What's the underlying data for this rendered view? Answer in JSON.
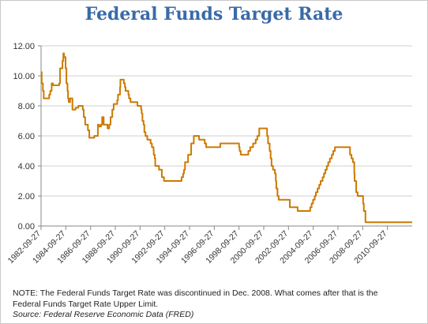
{
  "chart_data": {
    "type": "line",
    "title": "Federal Funds Target Rate",
    "xlabel": "",
    "ylabel": "",
    "ylim": [
      0,
      12
    ],
    "yticks": [
      "0.00",
      "2.00",
      "4.00",
      "6.00",
      "8.00",
      "10.00",
      "12.00"
    ],
    "xticks": [
      "1982-09-27",
      "1984-09-27",
      "1986-09-27",
      "1988-09-27",
      "1990-09-27",
      "1992-09-27",
      "1994-09-27",
      "1996-09-27",
      "1998-09-27",
      "2000-09-27",
      "2002-09-27",
      "2004-09-27",
      "2006-09-27",
      "2008-09-27",
      "2010-09-27"
    ],
    "xlim": [
      "1982-09-27",
      "2012-09-27"
    ],
    "grid": true,
    "legend": "none",
    "line_color": "#cc7a00",
    "series": [
      {
        "points": [
          [
            "1982-09-27",
            10.25
          ],
          [
            "1982-10-15",
            9.5
          ],
          [
            "1982-11-20",
            9.0
          ],
          [
            "1982-12-15",
            8.5
          ],
          [
            "1983-04-01",
            8.5
          ],
          [
            "1983-05-25",
            8.75
          ],
          [
            "1983-06-25",
            9.0
          ],
          [
            "1983-08-05",
            9.5
          ],
          [
            "1983-09-15",
            9.375
          ],
          [
            "1984-03-15",
            9.5
          ],
          [
            "1984-04-10",
            10.5
          ],
          [
            "1984-06-20",
            11.0
          ],
          [
            "1984-07-15",
            11.5
          ],
          [
            "1984-08-05",
            11.25
          ],
          [
            "1984-09-20",
            10.5
          ],
          [
            "1984-10-15",
            9.5
          ],
          [
            "1984-11-15",
            9.0
          ],
          [
            "1984-12-01",
            8.5
          ],
          [
            "1984-12-20",
            8.25
          ],
          [
            "1985-02-01",
            8.5
          ],
          [
            "1985-03-10",
            8.5
          ],
          [
            "1985-04-10",
            7.75
          ],
          [
            "1985-05-20",
            7.75
          ],
          [
            "1985-07-10",
            7.875
          ],
          [
            "1985-10-01",
            8.0
          ],
          [
            "1986-02-10",
            7.75
          ],
          [
            "1986-03-10",
            7.25
          ],
          [
            "1986-04-21",
            6.75
          ],
          [
            "1986-07-11",
            6.375
          ],
          [
            "1986-08-21",
            5.875
          ],
          [
            "1986-12-15",
            5.875
          ],
          [
            "1987-01-15",
            6.0
          ],
          [
            "1987-05-01",
            6.75
          ],
          [
            "1987-06-10",
            6.625
          ],
          [
            "1987-08-01",
            6.75
          ],
          [
            "1987-09-04",
            7.25
          ],
          [
            "1987-10-20",
            6.75
          ],
          [
            "1987-11-04",
            6.75
          ],
          [
            "1988-02-11",
            6.5
          ],
          [
            "1988-04-01",
            6.75
          ],
          [
            "1988-05-09",
            7.25
          ],
          [
            "1988-06-30",
            7.75
          ],
          [
            "1988-08-09",
            8.125
          ],
          [
            "1988-11-22",
            8.375
          ],
          [
            "1988-12-15",
            8.75
          ],
          [
            "1989-02-14",
            9.25
          ],
          [
            "1989-02-24",
            9.75
          ],
          [
            "1989-06-06",
            9.5
          ],
          [
            "1989-07-07",
            9.25
          ],
          [
            "1989-07-27",
            9.0
          ],
          [
            "1989-10-18",
            8.75
          ],
          [
            "1989-11-06",
            8.5
          ],
          [
            "1989-12-20",
            8.25
          ],
          [
            "1990-07-13",
            8.0
          ],
          [
            "1990-10-29",
            7.75
          ],
          [
            "1990-11-14",
            7.5
          ],
          [
            "1990-12-07",
            7.0
          ],
          [
            "1991-01-09",
            6.75
          ],
          [
            "1991-02-01",
            6.25
          ],
          [
            "1991-03-08",
            6.0
          ],
          [
            "1991-04-30",
            5.75
          ],
          [
            "1991-08-06",
            5.5
          ],
          [
            "1991-09-13",
            5.25
          ],
          [
            "1991-10-31",
            5.0
          ],
          [
            "1991-11-06",
            4.75
          ],
          [
            "1991-12-06",
            4.5
          ],
          [
            "1991-12-20",
            4.0
          ],
          [
            "1992-04-09",
            3.75
          ],
          [
            "1992-07-02",
            3.25
          ],
          [
            "1992-09-04",
            3.0
          ],
          [
            "1994-02-04",
            3.25
          ],
          [
            "1994-03-22",
            3.5
          ],
          [
            "1994-04-18",
            3.75
          ],
          [
            "1994-05-17",
            4.25
          ],
          [
            "1994-08-16",
            4.75
          ],
          [
            "1994-11-15",
            5.5
          ],
          [
            "1995-02-01",
            6.0
          ],
          [
            "1995-07-06",
            5.75
          ],
          [
            "1995-12-19",
            5.5
          ],
          [
            "1996-01-31",
            5.25
          ],
          [
            "1997-03-25",
            5.5
          ],
          [
            "1998-09-29",
            5.25
          ],
          [
            "1998-10-15",
            5.0
          ],
          [
            "1998-11-17",
            4.75
          ],
          [
            "1999-06-30",
            5.0
          ],
          [
            "1999-08-24",
            5.25
          ],
          [
            "1999-11-16",
            5.5
          ],
          [
            "2000-02-02",
            5.75
          ],
          [
            "2000-03-21",
            6.0
          ],
          [
            "2000-05-16",
            6.5
          ],
          [
            "2001-01-03",
            6.0
          ],
          [
            "2001-01-31",
            5.5
          ],
          [
            "2001-03-20",
            5.0
          ],
          [
            "2001-04-18",
            4.5
          ],
          [
            "2001-05-15",
            4.0
          ],
          [
            "2001-06-27",
            3.75
          ],
          [
            "2001-08-21",
            3.5
          ],
          [
            "2001-09-17",
            3.0
          ],
          [
            "2001-10-02",
            2.5
          ],
          [
            "2001-11-06",
            2.0
          ],
          [
            "2001-12-11",
            1.75
          ],
          [
            "2002-11-06",
            1.25
          ],
          [
            "2003-06-25",
            1.0
          ],
          [
            "2004-06-30",
            1.25
          ],
          [
            "2004-08-10",
            1.5
          ],
          [
            "2004-09-21",
            1.75
          ],
          [
            "2004-11-10",
            2.0
          ],
          [
            "2004-12-14",
            2.25
          ],
          [
            "2005-02-02",
            2.5
          ],
          [
            "2005-03-22",
            2.75
          ],
          [
            "2005-05-03",
            3.0
          ],
          [
            "2005-06-30",
            3.25
          ],
          [
            "2005-08-09",
            3.5
          ],
          [
            "2005-09-20",
            3.75
          ],
          [
            "2005-11-01",
            4.0
          ],
          [
            "2005-12-13",
            4.25
          ],
          [
            "2006-01-31",
            4.5
          ],
          [
            "2006-03-28",
            4.75
          ],
          [
            "2006-05-10",
            5.0
          ],
          [
            "2006-06-29",
            5.25
          ],
          [
            "2007-09-18",
            4.75
          ],
          [
            "2007-10-31",
            4.5
          ],
          [
            "2007-12-11",
            4.25
          ],
          [
            "2008-01-22",
            3.5
          ],
          [
            "2008-01-30",
            3.0
          ],
          [
            "2008-03-18",
            2.25
          ],
          [
            "2008-04-30",
            2.0
          ],
          [
            "2008-10-08",
            1.5
          ],
          [
            "2008-10-29",
            1.0
          ],
          [
            "2008-12-16",
            0.25
          ],
          [
            "2012-09-27",
            0.25
          ]
        ]
      }
    ]
  },
  "note": "NOTE: The Federal Funds Target Rate was discontinued in Dec. 2008. What comes after that is the Federal Funds Target Rate Upper Limit.",
  "source": "Source: Federal Reserve Economic Data (FRED)"
}
